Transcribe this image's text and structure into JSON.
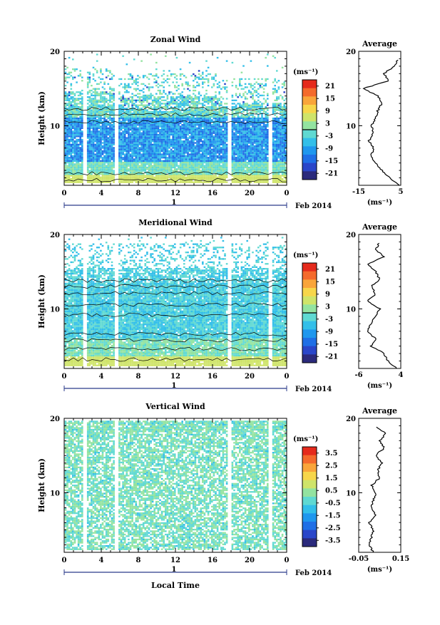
{
  "figure": {
    "xlabel": "Local Time",
    "date_label": "Feb 2014",
    "date_tick": "1",
    "unit_label": "(ms⁻¹)"
  },
  "colors": {
    "scale": [
      "#2b2a7c",
      "#2a46c9",
      "#1f6fe6",
      "#1f97ee",
      "#33bfe9",
      "#5fd9d2",
      "#93e3a0",
      "#cfe46a",
      "#f7d64a",
      "#f9a53a",
      "#f46a2c",
      "#e52a1c"
    ],
    "contour": "#000000",
    "background": "#ffffff"
  },
  "chart_data": [
    {
      "type": "heatmap",
      "title": "Zonal Wind",
      "ylabel": "Height (km)",
      "xlabel": "",
      "xlim": [
        0,
        24
      ],
      "ylim": [
        2,
        20
      ],
      "x_ticks": [
        "0",
        "4",
        "8",
        "12",
        "16",
        "20",
        "0"
      ],
      "y_ticks": [
        "10",
        "20"
      ],
      "colorbar": {
        "ticks": [
          "21",
          "15",
          "9",
          "3",
          "-3",
          "-9",
          "-15",
          "-21"
        ],
        "range": [
          -24,
          24
        ],
        "contour_at": 0
      },
      "data_gaps_hours": [
        [
          2.0,
          2.4
        ],
        [
          5.3,
          5.7
        ],
        [
          17.6,
          18.0
        ],
        [
          21.9,
          22.3
        ]
      ],
      "profile": {
        "title": "Average",
        "xlim": [
          -15,
          5
        ],
        "xticks": [
          "-15",
          "5"
        ],
        "xlabel": "(ms⁻¹)",
        "heights": [
          2,
          3,
          4,
          5,
          6,
          7,
          8,
          9,
          10,
          11,
          12,
          13,
          14,
          15,
          16,
          17,
          18,
          19
        ],
        "values": [
          4,
          0,
          -4,
          -7,
          -9,
          -8,
          -10,
          -8,
          -9,
          -7,
          -6,
          -4,
          -6,
          -13,
          -1,
          -3,
          2,
          4
        ]
      }
    },
    {
      "type": "heatmap",
      "title": "Meridional Wind",
      "ylabel": "Height (km)",
      "xlabel": "",
      "xlim": [
        0,
        24
      ],
      "ylim": [
        2,
        20
      ],
      "x_ticks": [
        "0",
        "4",
        "8",
        "12",
        "16",
        "20",
        "0"
      ],
      "y_ticks": [
        "10",
        "20"
      ],
      "colorbar": {
        "ticks": [
          "21",
          "15",
          "9",
          "3",
          "-3",
          "-9",
          "-15",
          "-21"
        ],
        "range": [
          -24,
          24
        ],
        "contour_at": 0
      },
      "data_gaps_hours": [
        [
          2.0,
          2.4
        ],
        [
          5.3,
          5.7
        ],
        [
          17.6,
          18.0
        ],
        [
          21.9,
          22.3
        ]
      ],
      "profile": {
        "title": "Average",
        "xlim": [
          -6,
          4
        ],
        "xticks": [
          "-6",
          "4"
        ],
        "xlabel": "(ms⁻¹)",
        "heights": [
          2,
          3,
          4,
          5,
          6,
          7,
          8,
          9,
          10,
          11,
          12,
          13,
          14,
          15,
          16,
          17,
          18,
          19
        ],
        "values": [
          3,
          1,
          0,
          -3,
          -2,
          -4,
          -3,
          -2,
          -1,
          -4,
          -2,
          -3,
          -1,
          -2,
          -4,
          0,
          -2,
          -1
        ]
      }
    },
    {
      "type": "heatmap",
      "title": "Vertical Wind",
      "ylabel": "Height (km)",
      "xlabel": "Local Time",
      "xlim": [
        0,
        24
      ],
      "ylim": [
        2,
        20
      ],
      "x_ticks": [
        "0",
        "4",
        "8",
        "12",
        "16",
        "20",
        "0"
      ],
      "y_ticks": [
        "10",
        "20"
      ],
      "colorbar": {
        "ticks": [
          "3.5",
          "2.5",
          "1.5",
          "0.5",
          "-0.5",
          "-1.5",
          "-2.5",
          "-3.5"
        ],
        "range": [
          -4,
          4
        ],
        "contour_at": null
      },
      "data_gaps_hours": [
        [
          2.0,
          2.4
        ],
        [
          5.3,
          5.7
        ],
        [
          17.6,
          18.0
        ],
        [
          21.9,
          22.3
        ]
      ],
      "profile": {
        "title": "Average",
        "xlim": [
          -0.05,
          0.15
        ],
        "xticks": [
          "-0.05",
          "0.15"
        ],
        "xlabel": "(ms⁻¹)",
        "heights": [
          2,
          3,
          4,
          5,
          6,
          7,
          8,
          9,
          10,
          11,
          12,
          13,
          14,
          15,
          16,
          17,
          18,
          19
        ],
        "values": [
          0.02,
          0.0,
          0.01,
          0.02,
          0.0,
          0.03,
          0.01,
          0.02,
          0.03,
          0.01,
          0.05,
          0.04,
          0.06,
          0.03,
          0.07,
          0.05,
          0.08,
          0.02
        ]
      }
    }
  ]
}
